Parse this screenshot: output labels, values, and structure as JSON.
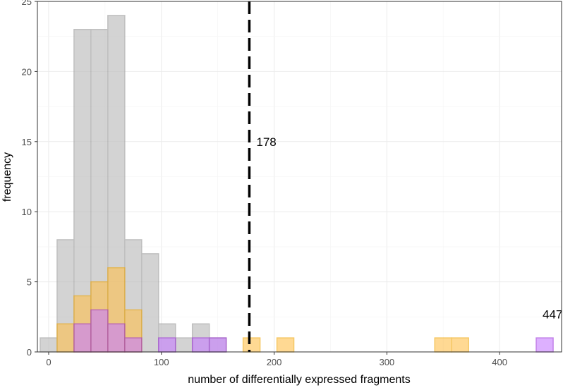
{
  "chart_data": {
    "type": "bar",
    "subtype": "overlaid histogram",
    "xlabel": "number of differentially expressed fragments",
    "ylabel": "frequency",
    "xlim": [
      -10,
      455
    ],
    "ylim": [
      0,
      25
    ],
    "x_ticks": [
      0,
      100,
      200,
      300,
      400
    ],
    "y_ticks": [
      0,
      5,
      10,
      15,
      20,
      25
    ],
    "x_tick_labels": [
      "0",
      "100",
      "200",
      "300",
      "400"
    ],
    "y_tick_labels": [
      "0",
      "5",
      "10",
      "15",
      "20",
      "25"
    ],
    "grid": true,
    "legend": "none",
    "bin_width": 15,
    "series": [
      {
        "color": "#bdbdbd",
        "stroke": "#9e9e9e",
        "bins": [
          {
            "x": 0,
            "count": 1
          },
          {
            "x": 15,
            "count": 8
          },
          {
            "x": 30,
            "count": 23
          },
          {
            "x": 45,
            "count": 23
          },
          {
            "x": 60,
            "count": 24
          },
          {
            "x": 75,
            "count": 8
          },
          {
            "x": 90,
            "count": 7
          },
          {
            "x": 105,
            "count": 2
          },
          {
            "x": 120,
            "count": 1
          },
          {
            "x": 135,
            "count": 2
          },
          {
            "x": 150,
            "count": 1
          },
          {
            "x": 165,
            "count": 0
          },
          {
            "x": 180,
            "count": 0
          },
          {
            "x": 195,
            "count": 0
          },
          {
            "x": 210,
            "count": 0
          },
          {
            "x": 225,
            "count": 0
          },
          {
            "x": 240,
            "count": 0
          },
          {
            "x": 255,
            "count": 0
          },
          {
            "x": 270,
            "count": 0
          },
          {
            "x": 285,
            "count": 0
          },
          {
            "x": 300,
            "count": 0
          },
          {
            "x": 315,
            "count": 0
          },
          {
            "x": 330,
            "count": 0
          },
          {
            "x": 345,
            "count": 0
          },
          {
            "x": 360,
            "count": 0
          },
          {
            "x": 375,
            "count": 0
          },
          {
            "x": 390,
            "count": 0
          },
          {
            "x": 405,
            "count": 0
          },
          {
            "x": 420,
            "count": 0
          },
          {
            "x": 435,
            "count": 0
          }
        ]
      },
      {
        "color": "#ffc04d",
        "stroke": "#f0a500",
        "bins": [
          {
            "x": 15,
            "count": 2
          },
          {
            "x": 30,
            "count": 4
          },
          {
            "x": 45,
            "count": 5
          },
          {
            "x": 60,
            "count": 6
          },
          {
            "x": 75,
            "count": 3
          },
          {
            "x": 180,
            "count": 1
          },
          {
            "x": 210,
            "count": 1
          },
          {
            "x": 350,
            "count": 1
          },
          {
            "x": 365,
            "count": 1
          }
        ]
      },
      {
        "color": "#c77dff",
        "stroke": "#9b30d9",
        "bins": [
          {
            "x": 30,
            "count": 2
          },
          {
            "x": 45,
            "count": 3
          },
          {
            "x": 60,
            "count": 2
          },
          {
            "x": 75,
            "count": 1
          },
          {
            "x": 105,
            "count": 1
          },
          {
            "x": 135,
            "count": 1
          },
          {
            "x": 150,
            "count": 1
          },
          {
            "x": 440,
            "count": 1
          }
        ]
      }
    ],
    "reference_line": {
      "x": 178,
      "style": "dashed",
      "color": "#000000",
      "label": "178"
    },
    "annotations": [
      {
        "text": "447",
        "x": 447,
        "y": 2.4
      }
    ]
  }
}
